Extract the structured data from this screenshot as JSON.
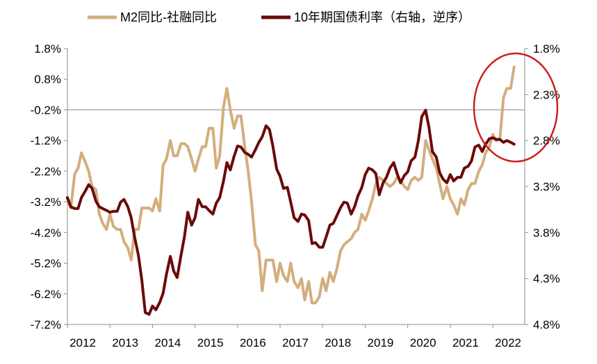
{
  "chart_data": {
    "type": "line",
    "title": "",
    "colors": {
      "m2_gap": "#D4AE7E",
      "yield": "#6B0A0A",
      "axis": "#8C8C8C",
      "highlight": "#CC1F1F"
    },
    "x_tick_labels": [
      "2012",
      "2013",
      "2014",
      "2015",
      "2016",
      "2017",
      "2018",
      "2019",
      "2020",
      "2021",
      "2022"
    ],
    "x_range": [
      2012.0,
      2022.75
    ],
    "left_axis": {
      "label": "M2同比-社融同比",
      "tick_labels": [
        "1.8%",
        "0.8%",
        "-0.2%",
        "-1.2%",
        "-2.2%",
        "-3.2%",
        "-4.2%",
        "-5.2%",
        "-6.2%",
        "-7.2%"
      ],
      "ylim": [
        -7.2,
        1.8
      ]
    },
    "right_axis": {
      "label": "10年期国债利率（右轴，逆序）",
      "tick_labels": [
        "1.8%",
        "2.3%",
        "2.8%",
        "3.3%",
        "3.8%",
        "4.3%",
        "4.8%"
      ],
      "ylim": [
        4.8,
        1.8
      ],
      "inverted": true
    },
    "series": [
      {
        "name": "M2同比-社融同比",
        "axis": "left",
        "x": [
          2012.0,
          2012.08,
          2012.17,
          2012.25,
          2012.33,
          2012.42,
          2012.5,
          2012.58,
          2012.67,
          2012.75,
          2012.83,
          2012.92,
          2013.0,
          2013.08,
          2013.17,
          2013.25,
          2013.33,
          2013.42,
          2013.5,
          2013.58,
          2013.67,
          2013.75,
          2013.83,
          2013.92,
          2014.0,
          2014.08,
          2014.17,
          2014.25,
          2014.33,
          2014.42,
          2014.5,
          2014.58,
          2014.67,
          2014.75,
          2014.83,
          2014.92,
          2015.0,
          2015.08,
          2015.17,
          2015.25,
          2015.33,
          2015.42,
          2015.5,
          2015.58,
          2015.67,
          2015.75,
          2015.83,
          2015.92,
          2016.0,
          2016.08,
          2016.17,
          2016.25,
          2016.33,
          2016.42,
          2016.5,
          2016.58,
          2016.67,
          2016.75,
          2016.83,
          2016.92,
          2017.0,
          2017.08,
          2017.17,
          2017.25,
          2017.33,
          2017.42,
          2017.5,
          2017.58,
          2017.67,
          2017.75,
          2017.83,
          2017.92,
          2018.0,
          2018.08,
          2018.17,
          2018.25,
          2018.33,
          2018.42,
          2018.5,
          2018.58,
          2018.67,
          2018.75,
          2018.83,
          2018.92,
          2019.0,
          2019.08,
          2019.17,
          2019.25,
          2019.33,
          2019.42,
          2019.5,
          2019.58,
          2019.67,
          2019.75,
          2019.83,
          2019.92,
          2020.0,
          2020.08,
          2020.17,
          2020.25,
          2020.33,
          2020.42,
          2020.5,
          2020.58,
          2020.67,
          2020.75,
          2020.83,
          2020.92,
          2021.0,
          2021.08,
          2021.17,
          2021.25,
          2021.33,
          2021.42,
          2021.5,
          2021.58,
          2021.67,
          2021.75,
          2021.83,
          2021.92,
          2022.0,
          2022.08,
          2022.17,
          2022.25,
          2022.33,
          2022.42,
          2022.5
        ],
        "values": [
          -3.1,
          -3.4,
          -2.3,
          -2.1,
          -1.6,
          -1.9,
          -2.2,
          -2.7,
          -2.8,
          -3.6,
          -3.9,
          -4.1,
          -3.6,
          -4.0,
          -4.1,
          -4.1,
          -4.5,
          -4.7,
          -5.1,
          -4.1,
          -4.1,
          -3.4,
          -3.4,
          -3.4,
          -3.5,
          -3.1,
          -3.5,
          -2.0,
          -1.8,
          -1.2,
          -1.7,
          -1.7,
          -1.3,
          -1.3,
          -1.4,
          -1.8,
          -2.2,
          -1.8,
          -1.4,
          -1.4,
          -0.8,
          -0.8,
          -2.1,
          -1.7,
          -0.1,
          0.5,
          -0.2,
          -0.8,
          -0.4,
          -0.4,
          -1.4,
          -2.2,
          -3.2,
          -4.6,
          -4.8,
          -6.1,
          -5.1,
          -5.1,
          -5.1,
          -5.8,
          -5.2,
          -5.6,
          -5.8,
          -5.2,
          -5.8,
          -6.0,
          -5.7,
          -6.4,
          -5.8,
          -6.5,
          -6.5,
          -6.3,
          -5.7,
          -6.1,
          -5.5,
          -5.8,
          -5.4,
          -4.8,
          -4.6,
          -4.5,
          -4.4,
          -4.2,
          -4.1,
          -3.6,
          -3.8,
          -3.5,
          -3.1,
          -2.6,
          -2.4,
          -2.5,
          -2.6,
          -2.7,
          -2.6,
          -2.4,
          -2.5,
          -2.7,
          -2.8,
          -2.5,
          -2.4,
          -2.5,
          -2.4,
          -1.2,
          -1.5,
          -1.8,
          -2.1,
          -2.6,
          -3.1,
          -2.7,
          -3.1,
          -3.3,
          -3.6,
          -3.1,
          -3.3,
          -2.8,
          -2.6,
          -2.6,
          -2.2,
          -2.0,
          -1.6,
          -1.4,
          -1.0,
          -1.2,
          -1.1,
          0.2,
          0.5,
          0.5,
          1.2
        ]
      },
      {
        "name": "10年期国债利率（右轴，逆序）",
        "axis": "right",
        "x": [
          2012.0,
          2012.08,
          2012.17,
          2012.25,
          2012.33,
          2012.42,
          2012.5,
          2012.58,
          2012.67,
          2012.75,
          2012.83,
          2012.92,
          2013.0,
          2013.08,
          2013.17,
          2013.25,
          2013.33,
          2013.42,
          2013.5,
          2013.58,
          2013.67,
          2013.75,
          2013.83,
          2013.92,
          2014.0,
          2014.08,
          2014.17,
          2014.25,
          2014.33,
          2014.42,
          2014.5,
          2014.58,
          2014.67,
          2014.75,
          2014.83,
          2014.92,
          2015.0,
          2015.08,
          2015.17,
          2015.25,
          2015.33,
          2015.42,
          2015.5,
          2015.58,
          2015.67,
          2015.75,
          2015.83,
          2015.92,
          2016.0,
          2016.08,
          2016.17,
          2016.25,
          2016.33,
          2016.42,
          2016.5,
          2016.58,
          2016.67,
          2016.75,
          2016.83,
          2016.92,
          2017.0,
          2017.08,
          2017.17,
          2017.25,
          2017.33,
          2017.42,
          2017.5,
          2017.58,
          2017.67,
          2017.75,
          2017.83,
          2017.92,
          2018.0,
          2018.08,
          2018.17,
          2018.25,
          2018.33,
          2018.42,
          2018.5,
          2018.58,
          2018.67,
          2018.75,
          2018.83,
          2018.92,
          2019.0,
          2019.08,
          2019.17,
          2019.25,
          2019.33,
          2019.42,
          2019.5,
          2019.58,
          2019.67,
          2019.75,
          2019.83,
          2019.92,
          2020.0,
          2020.08,
          2020.17,
          2020.25,
          2020.33,
          2020.42,
          2020.5,
          2020.58,
          2020.67,
          2020.75,
          2020.83,
          2020.92,
          2021.0,
          2021.08,
          2021.17,
          2021.25,
          2021.33,
          2021.42,
          2021.5,
          2021.58,
          2021.67,
          2021.75,
          2021.83,
          2021.92,
          2022.0,
          2022.08,
          2022.17,
          2022.25,
          2022.33,
          2022.42,
          2022.5
        ],
        "values": [
          3.42,
          3.52,
          3.54,
          3.54,
          3.42,
          3.35,
          3.28,
          3.32,
          3.46,
          3.52,
          3.54,
          3.56,
          3.58,
          3.57,
          3.57,
          3.47,
          3.44,
          3.52,
          3.64,
          3.85,
          4.05,
          4.32,
          4.67,
          4.69,
          4.6,
          4.64,
          4.56,
          4.46,
          4.25,
          4.06,
          4.22,
          4.29,
          4.05,
          3.85,
          3.58,
          3.72,
          3.64,
          3.44,
          3.52,
          3.52,
          3.56,
          3.6,
          3.48,
          3.42,
          3.24,
          3.04,
          3.12,
          2.97,
          2.86,
          2.87,
          2.93,
          2.95,
          2.98,
          2.9,
          2.82,
          2.76,
          2.64,
          2.68,
          2.86,
          3.11,
          3.19,
          3.32,
          3.31,
          3.47,
          3.64,
          3.68,
          3.6,
          3.61,
          3.67,
          3.92,
          3.91,
          3.96,
          3.96,
          3.85,
          3.72,
          3.7,
          3.62,
          3.53,
          3.47,
          3.48,
          3.6,
          3.52,
          3.4,
          3.31,
          3.17,
          3.1,
          3.12,
          3.16,
          3.39,
          3.26,
          3.2,
          3.1,
          3.04,
          3.16,
          3.26,
          3.18,
          3.14,
          3.02,
          2.98,
          2.8,
          2.54,
          2.47,
          2.66,
          2.92,
          2.98,
          3.15,
          3.22,
          3.26,
          3.17,
          3.24,
          3.2,
          3.2,
          3.1,
          3.08,
          3.02,
          2.87,
          2.85,
          2.92,
          2.84,
          2.78,
          2.77,
          2.79,
          2.79,
          2.82,
          2.8,
          2.82,
          2.84
        ]
      }
    ],
    "annotations": [
      "red ellipse highlighting 2022 divergence"
    ]
  }
}
